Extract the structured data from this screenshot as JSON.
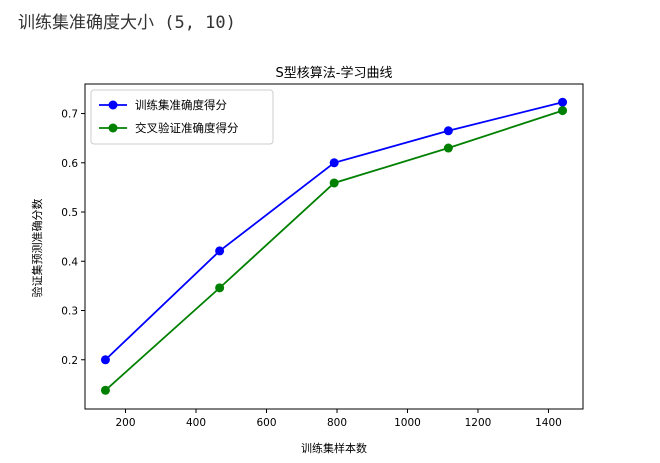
{
  "caption": "训练集准确度大小 (5, 10)",
  "chart_data": {
    "type": "line",
    "title": "S型核算法-学习曲线",
    "xlabel": "训练集样本数",
    "ylabel": "验证集预测准确分数",
    "x": [
      143,
      467,
      792,
      1116,
      1440
    ],
    "xlim": [
      85,
      1498
    ],
    "ylim": [
      0.1,
      0.76
    ],
    "xticks": [
      200,
      400,
      600,
      800,
      1000,
      1200,
      1400
    ],
    "yticks": [
      0.2,
      0.3,
      0.4,
      0.5,
      0.6,
      0.7
    ],
    "grid": false,
    "legend_position": "top-left",
    "series": [
      {
        "name": "训练集准确度得分",
        "color": "#0000ff",
        "values": [
          0.2,
          0.421,
          0.6,
          0.665,
          0.723
        ]
      },
      {
        "name": "交叉验证准确度得分",
        "color": "#008000",
        "values": [
          0.138,
          0.346,
          0.559,
          0.63,
          0.706
        ]
      }
    ]
  }
}
